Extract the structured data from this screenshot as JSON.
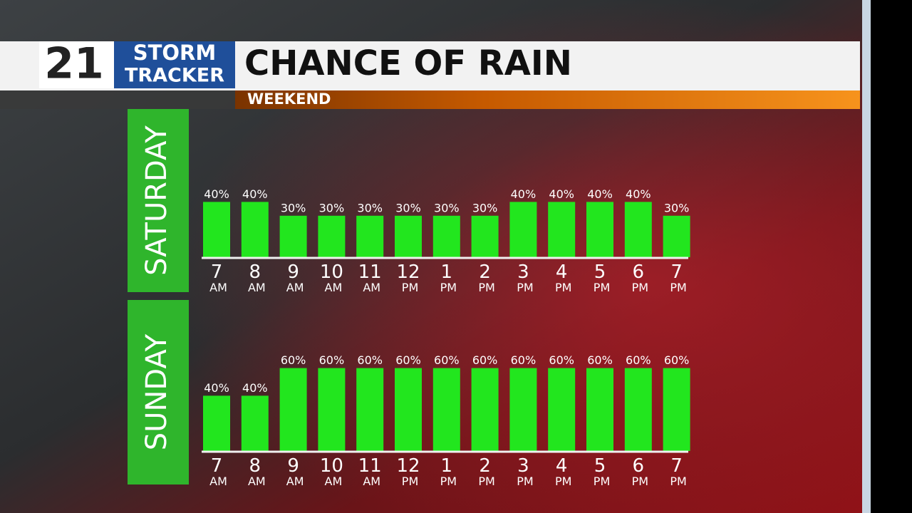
{
  "header": {
    "channel": "21",
    "brand_line1": "STORM",
    "brand_line2": "TRACKER",
    "title": "CHANCE OF RAIN",
    "subtitle": "WEEKEND"
  },
  "chart_data": [
    {
      "type": "bar",
      "title": "SATURDAY",
      "color": "#22e61e",
      "categories": [
        "7 AM",
        "8 AM",
        "9 AM",
        "10 AM",
        "11 AM",
        "12 PM",
        "1 PM",
        "2 PM",
        "3 PM",
        "4 PM",
        "5 PM",
        "6 PM",
        "7 PM"
      ],
      "values": [
        40,
        40,
        30,
        30,
        30,
        30,
        30,
        30,
        40,
        40,
        40,
        40,
        30
      ],
      "value_labels": [
        "40%",
        "40%",
        "30%",
        "30%",
        "30%",
        "30%",
        "30%",
        "30%",
        "40%",
        "40%",
        "40%",
        "40%",
        "30%"
      ]
    },
    {
      "type": "bar",
      "title": "SUNDAY",
      "color": "#22e61e",
      "categories": [
        "7 AM",
        "8 AM",
        "9 AM",
        "10 AM",
        "11 AM",
        "12 PM",
        "1 PM",
        "2 PM",
        "3 PM",
        "4 PM",
        "5 PM",
        "6 PM",
        "7 PM"
      ],
      "values": [
        40,
        40,
        60,
        60,
        60,
        60,
        60,
        60,
        60,
        60,
        60,
        60,
        60
      ],
      "value_labels": [
        "40%",
        "40%",
        "60%",
        "60%",
        "60%",
        "60%",
        "60%",
        "60%",
        "60%",
        "60%",
        "60%",
        "60%",
        "60%"
      ]
    }
  ]
}
